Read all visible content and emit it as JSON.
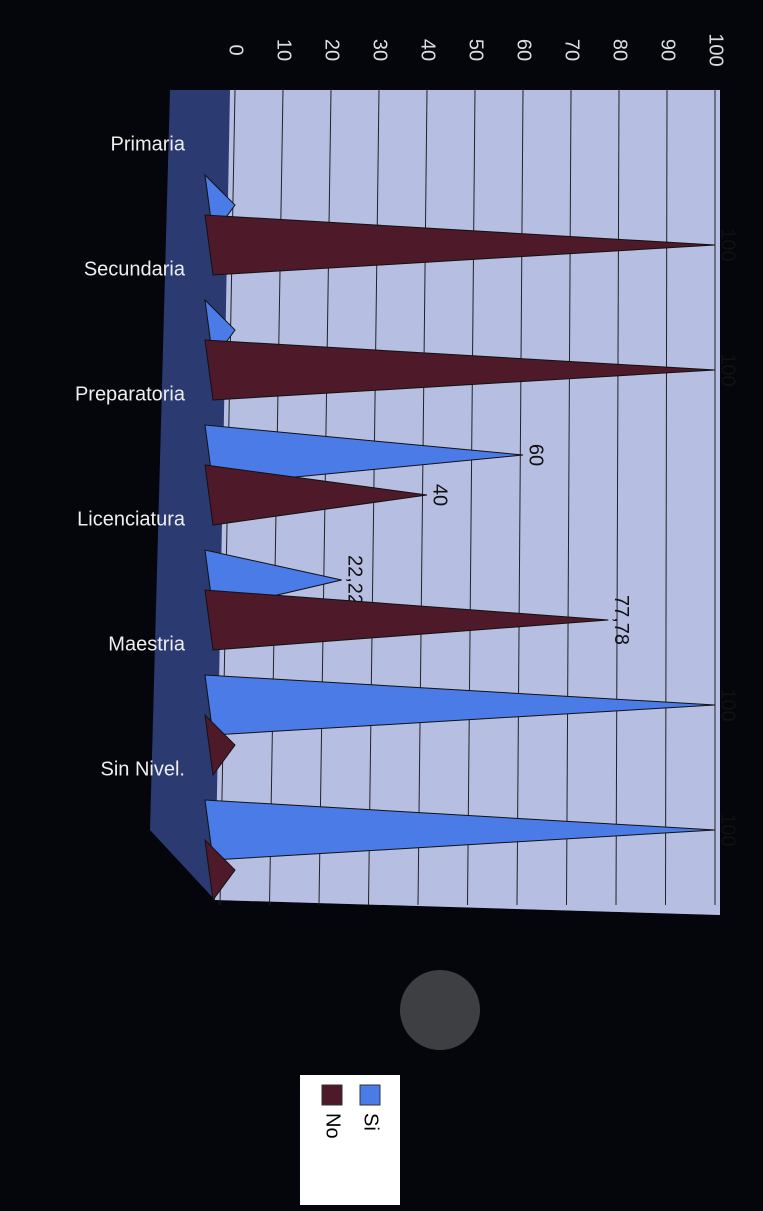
{
  "chart_data": {
    "type": "cone-bar",
    "categories": [
      "Primaria",
      "Secundaria",
      "Preparatoria",
      "Licenciatura",
      "Maestria",
      "Sin Nivel."
    ],
    "series": [
      {
        "name": "Si",
        "color": "#4a7be6",
        "values": [
          0,
          0,
          60,
          22.22,
          100,
          100
        ],
        "value_labels": [
          null,
          null,
          null,
          "22,22",
          null,
          null
        ]
      },
      {
        "name": "No",
        "color": "#4e1a2a",
        "values": [
          100,
          100,
          40,
          77.78,
          0,
          0
        ],
        "value_labels": [
          null,
          null,
          null,
          "77,78",
          null,
          null
        ]
      }
    ],
    "ylim": [
      0,
      100
    ],
    "yticks": [
      0,
      10,
      20,
      30,
      40,
      50,
      60,
      70,
      80,
      90,
      100
    ],
    "grid": true
  }
}
